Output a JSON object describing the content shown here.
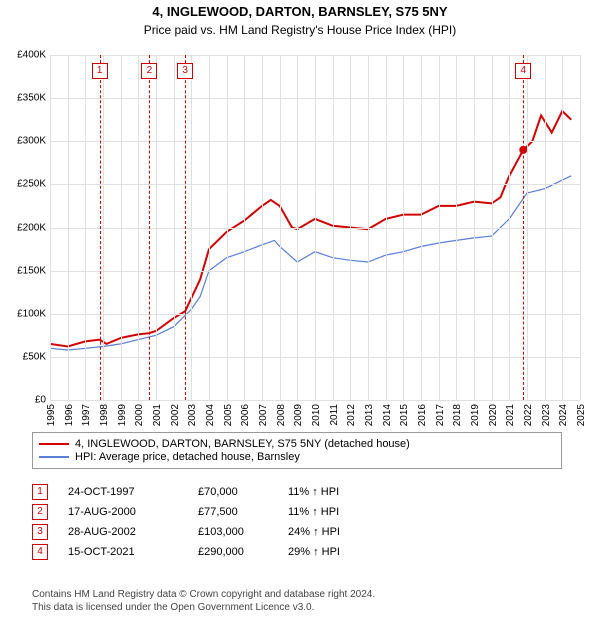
{
  "title_line1": "4, INGLEWOOD, DARTON, BARNSLEY, S75 5NY",
  "title_line2": "Price paid vs. HM Land Registry's House Price Index (HPI)",
  "chart": {
    "type": "line",
    "background_color": "#ffffff",
    "grid_color": "#e0e0e0",
    "x": {
      "min": 1995,
      "max": 2025,
      "step": 1
    },
    "y": {
      "min": 0,
      "max": 400000,
      "step": 50000,
      "prefix": "£",
      "k_suffix": true
    },
    "series": [
      {
        "name": "property",
        "label": "4, INGLEWOOD, DARTON, BARNSLEY, S75 5NY (detached house)",
        "color": "#d40000",
        "width": 2,
        "points": [
          [
            1995,
            65000
          ],
          [
            1996,
            62000
          ],
          [
            1997,
            68000
          ],
          [
            1997.8,
            70000
          ],
          [
            1998.2,
            65000
          ],
          [
            1999,
            72000
          ],
          [
            2000,
            76000
          ],
          [
            2000.6,
            77500
          ],
          [
            2001,
            80000
          ],
          [
            2002,
            95000
          ],
          [
            2002.65,
            103000
          ],
          [
            2003,
            118000
          ],
          [
            2003.5,
            140000
          ],
          [
            2004,
            175000
          ],
          [
            2005,
            195000
          ],
          [
            2006,
            208000
          ],
          [
            2007,
            225000
          ],
          [
            2007.5,
            232000
          ],
          [
            2008,
            225000
          ],
          [
            2008.7,
            200000
          ],
          [
            2009,
            198000
          ],
          [
            2010,
            210000
          ],
          [
            2011,
            202000
          ],
          [
            2012,
            200000
          ],
          [
            2013,
            198000
          ],
          [
            2014,
            210000
          ],
          [
            2015,
            215000
          ],
          [
            2016,
            215000
          ],
          [
            2017,
            225000
          ],
          [
            2018,
            225000
          ],
          [
            2019,
            230000
          ],
          [
            2020,
            228000
          ],
          [
            2020.5,
            235000
          ],
          [
            2021,
            260000
          ],
          [
            2021.79,
            290000
          ],
          [
            2022.3,
            300000
          ],
          [
            2022.8,
            330000
          ],
          [
            2023.4,
            310000
          ],
          [
            2024,
            335000
          ],
          [
            2024.5,
            325000
          ]
        ]
      },
      {
        "name": "hpi",
        "label": "HPI: Average price, detached house, Barnsley",
        "color": "#5a7fd6",
        "width": 1.2,
        "points": [
          [
            1995,
            60000
          ],
          [
            1996,
            58000
          ],
          [
            1997,
            60000
          ],
          [
            1998,
            62000
          ],
          [
            1999,
            65000
          ],
          [
            2000,
            70000
          ],
          [
            2001,
            75000
          ],
          [
            2002,
            85000
          ],
          [
            2003,
            105000
          ],
          [
            2003.5,
            120000
          ],
          [
            2004,
            150000
          ],
          [
            2005,
            165000
          ],
          [
            2006,
            172000
          ],
          [
            2007,
            180000
          ],
          [
            2007.7,
            185000
          ],
          [
            2008,
            178000
          ],
          [
            2009,
            160000
          ],
          [
            2010,
            172000
          ],
          [
            2011,
            165000
          ],
          [
            2012,
            162000
          ],
          [
            2013,
            160000
          ],
          [
            2014,
            168000
          ],
          [
            2015,
            172000
          ],
          [
            2016,
            178000
          ],
          [
            2017,
            182000
          ],
          [
            2018,
            185000
          ],
          [
            2019,
            188000
          ],
          [
            2020,
            190000
          ],
          [
            2021,
            210000
          ],
          [
            2022,
            240000
          ],
          [
            2023,
            245000
          ],
          [
            2024,
            255000
          ],
          [
            2024.5,
            260000
          ]
        ]
      }
    ],
    "markers": [
      {
        "n": "1",
        "year": 1997.81,
        "color": "#d40000"
      },
      {
        "n": "2",
        "year": 2000.63,
        "color": "#d40000"
      },
      {
        "n": "3",
        "year": 2002.65,
        "color": "#d40000"
      },
      {
        "n": "4",
        "year": 2021.79,
        "color": "#d40000"
      }
    ],
    "sale_dot": {
      "year": 2021.79,
      "value": 290000,
      "color": "#d40000"
    }
  },
  "legend": [
    {
      "color": "#d40000",
      "label": "4, INGLEWOOD, DARTON, BARNSLEY, S75 5NY (detached house)"
    },
    {
      "color": "#5a7fd6",
      "label": "HPI: Average price, detached house, Barnsley"
    }
  ],
  "events": [
    {
      "n": "1",
      "color": "#d40000",
      "date": "24-OCT-1997",
      "price": "£70,000",
      "diff": "11%",
      "arrow": "↑",
      "vs": "HPI"
    },
    {
      "n": "2",
      "color": "#d40000",
      "date": "17-AUG-2000",
      "price": "£77,500",
      "diff": "11%",
      "arrow": "↑",
      "vs": "HPI"
    },
    {
      "n": "3",
      "color": "#d40000",
      "date": "28-AUG-2002",
      "price": "£103,000",
      "diff": "24%",
      "arrow": "↑",
      "vs": "HPI"
    },
    {
      "n": "4",
      "color": "#d40000",
      "date": "15-OCT-2021",
      "price": "£290,000",
      "diff": "29%",
      "arrow": "↑",
      "vs": "HPI"
    }
  ],
  "footer_line1": "Contains HM Land Registry data © Crown copyright and database right 2024.",
  "footer_line2": "This data is licensed under the Open Government Licence v3.0."
}
